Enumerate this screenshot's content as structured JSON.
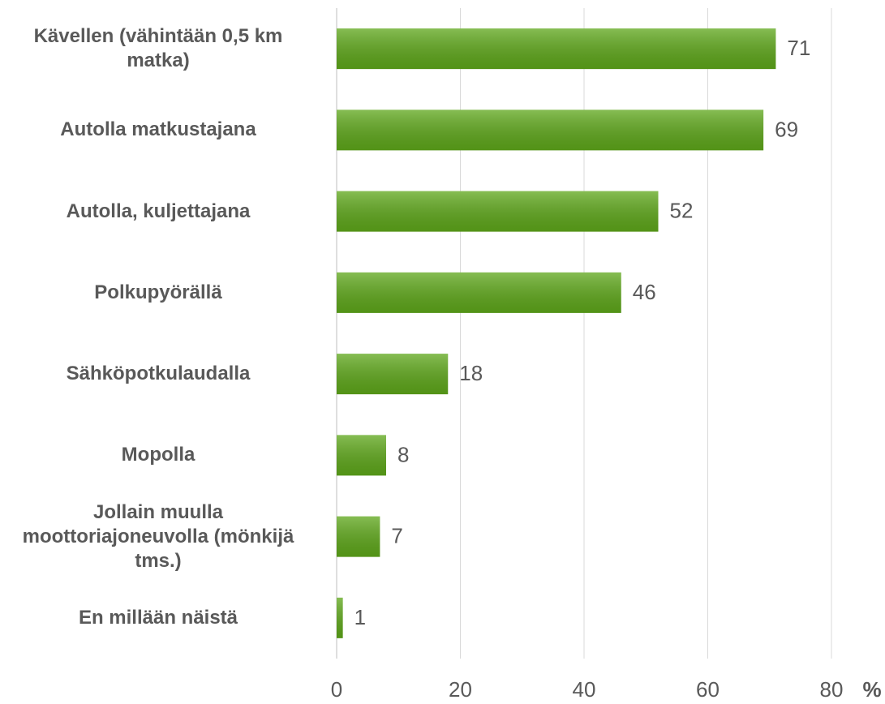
{
  "chart_data": {
    "type": "bar",
    "orientation": "horizontal",
    "categories": [
      "Kävellen (vähintään 0,5 km matka)",
      "Autolla matkustajana",
      "Autolla, kuljettajana",
      "Polkupyörällä",
      "Sähköpotkulaudalla",
      "Mopolla",
      "Jollain muulla moottoriajoneuvolla (mönkijä tms.)",
      "En millään näistä"
    ],
    "values": [
      71,
      69,
      52,
      46,
      18,
      8,
      7,
      1
    ],
    "color": "#5ea71a",
    "xlim": [
      0,
      80
    ],
    "xticks": [
      0,
      20,
      40,
      60,
      80
    ],
    "xlabel": "%",
    "grid": true
  }
}
